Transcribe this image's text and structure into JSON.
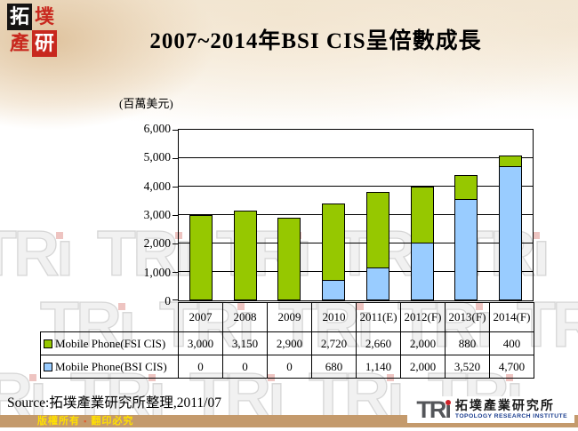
{
  "slide": {
    "title": "2007~2014年BSI CIS呈倍數成長",
    "source": "Source:拓墣產業研究所整理,2011/07",
    "corner_logo_chars": [
      "拓",
      "墣",
      "產",
      "研"
    ],
    "copyright": {
      "left": "版權所有",
      "sep": "▪",
      "right": "翻印必究"
    },
    "tri_logo": {
      "mark": "TR",
      "mark_i": "ı",
      "cn": "拓墣產業研究所",
      "en": "TOPOLOGY RESEARCH INSTITUTE"
    },
    "watermark_text": "TRı"
  },
  "chart_data": {
    "type": "bar",
    "stacked": true,
    "title": "2007~2014年BSI CIS呈倍數成長",
    "ylabel": "(百萬美元)",
    "xlabel": "",
    "categories": [
      "2007",
      "2008",
      "2009",
      "2010",
      "2011(E)",
      "2012(F)",
      "2013(F)",
      "2014(F)"
    ],
    "series": [
      {
        "name": "Mobile Phone(FSI CIS)",
        "color": "#96C800",
        "stack_order": "top",
        "values": [
          3000,
          3150,
          2900,
          2720,
          2660,
          2000,
          880,
          400
        ]
      },
      {
        "name": "Mobile Phone(BSI CIS)",
        "color": "#99CCFF",
        "stack_order": "bottom",
        "values": [
          0,
          0,
          0,
          680,
          1140,
          2000,
          3520,
          4700
        ]
      }
    ],
    "ylim": [
      0,
      6000
    ],
    "ytick_interval": 1000,
    "ytick_labels": [
      "6,000",
      "5,000",
      "4,000",
      "3,000",
      "2,000",
      "1,000",
      "0"
    ],
    "grid": true,
    "legend_position": "data-table-left"
  }
}
